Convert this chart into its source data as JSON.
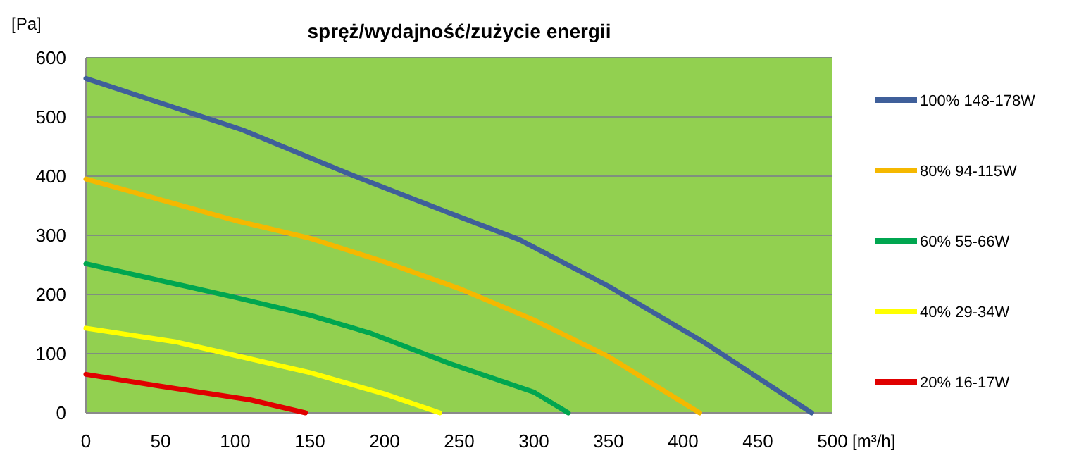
{
  "chart_data": {
    "type": "line",
    "title": "spręż/wydajność/zużycie energii",
    "xlabel": "[m³/h]",
    "ylabel": "[Pa]",
    "xlim": [
      0,
      500
    ],
    "xticks": [
      0,
      50,
      100,
      150,
      200,
      250,
      300,
      350,
      400,
      450,
      500
    ],
    "ylim": [
      0,
      600
    ],
    "yticks": [
      0,
      100,
      200,
      300,
      400,
      500,
      600
    ],
    "grid": "y",
    "legend": "right",
    "marker": "none",
    "series": [
      {
        "name": "100% 148-178W",
        "color": "#3f5f9a",
        "x": [
          0,
          105,
          175,
          243,
          290,
          350,
          414,
          486
        ],
        "values": [
          565,
          478,
          405,
          338,
          293,
          214,
          119,
          0
        ]
      },
      {
        "name": "80% 94-115W",
        "color": "#f5b800",
        "x": [
          0,
          100,
          150,
          200,
          250,
          300,
          350,
          411
        ],
        "values": [
          395,
          325,
          295,
          255,
          210,
          157,
          95,
          0
        ]
      },
      {
        "name": "60% 55-66W",
        "color": "#00a650",
        "x": [
          0,
          100,
          150,
          190,
          244,
          300,
          323
        ],
        "values": [
          252,
          195,
          165,
          135,
          83,
          35,
          0
        ]
      },
      {
        "name": "40% 29-34W",
        "color": "#ffff00",
        "x": [
          0,
          60,
          100,
          150,
          200,
          237
        ],
        "values": [
          143,
          120,
          97,
          68,
          32,
          0
        ]
      },
      {
        "name": "20% 16-17W",
        "color": "#e00000",
        "x": [
          0,
          50,
          110,
          147
        ],
        "values": [
          65,
          45,
          22,
          0
        ]
      }
    ]
  }
}
